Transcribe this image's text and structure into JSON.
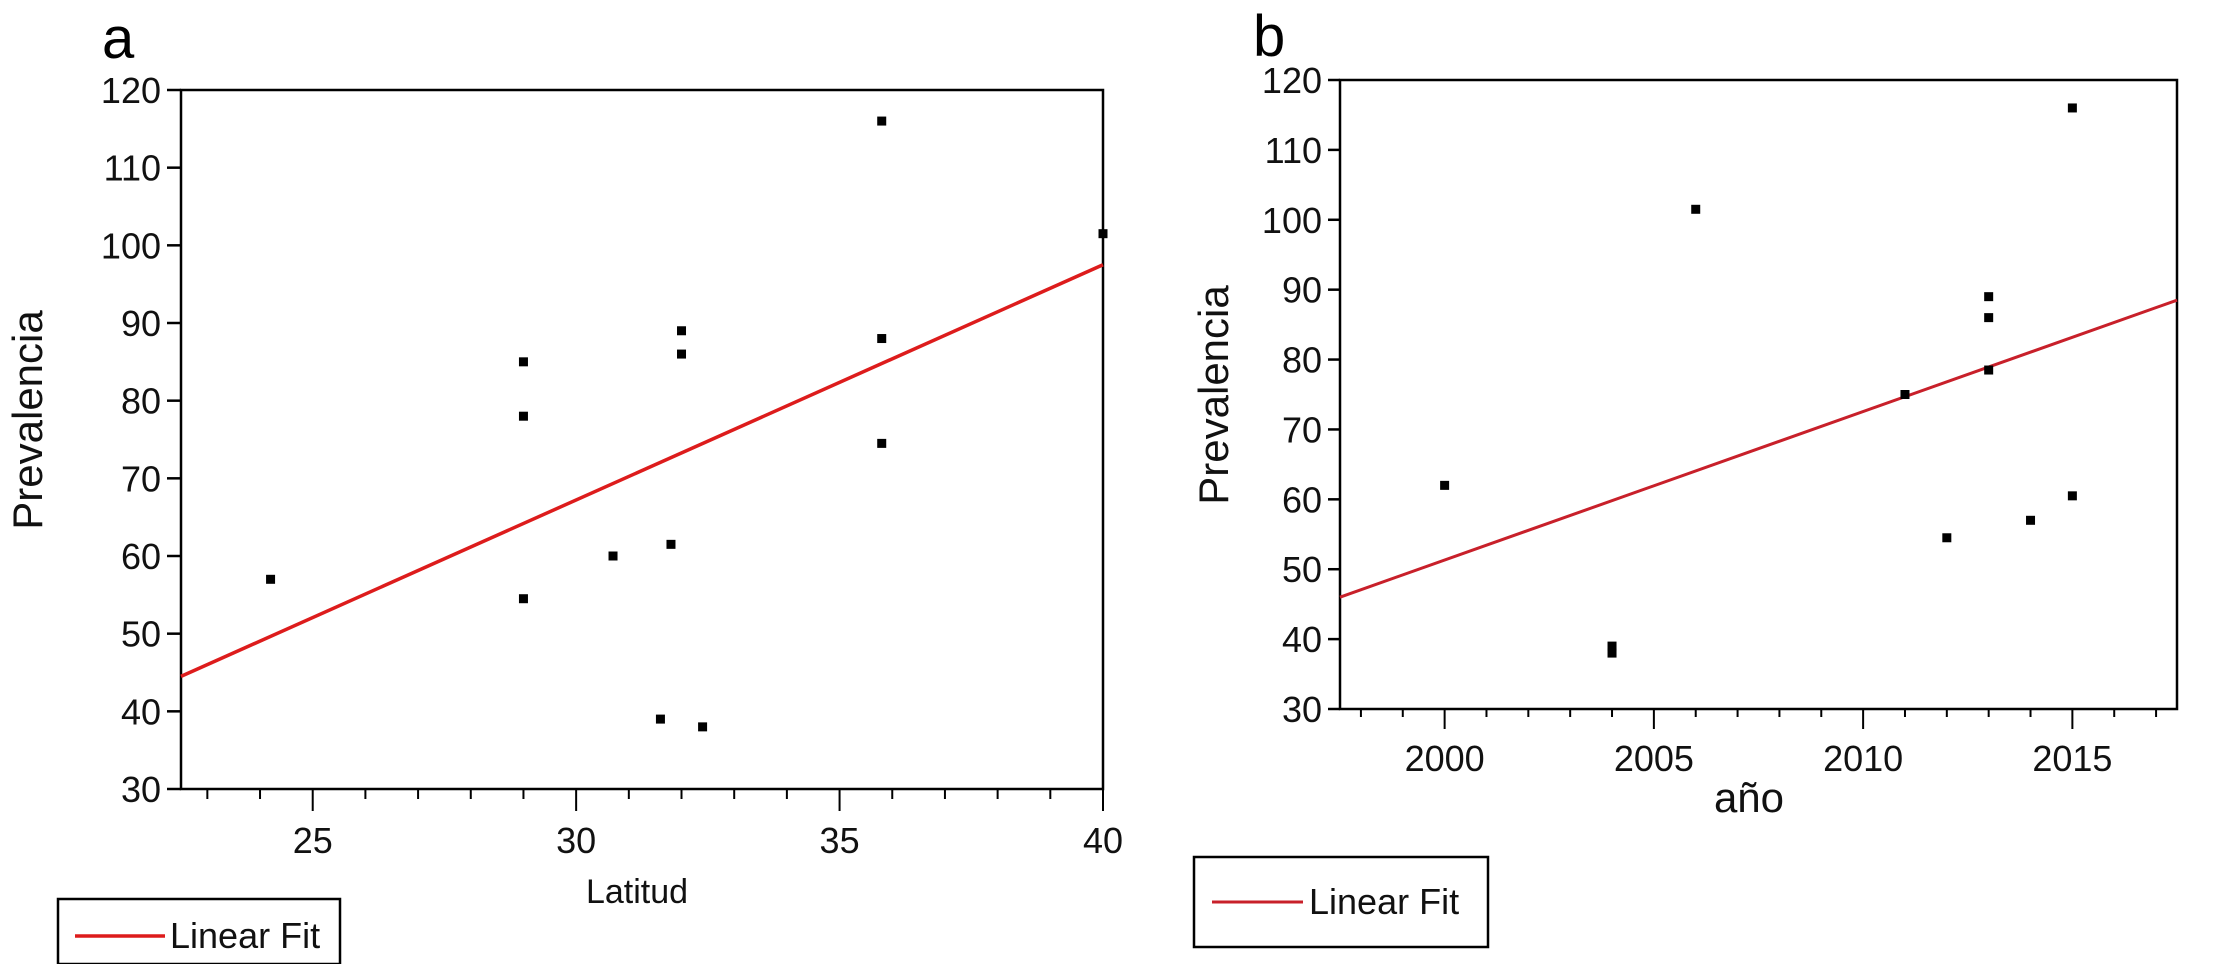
{
  "chart_data": [
    {
      "panel": "a",
      "type": "scatter",
      "xlabel": "Latitud",
      "ylabel": "Prevalencia",
      "xlim": [
        22.5,
        40
      ],
      "ylim": [
        30,
        120
      ],
      "xticks": [
        25,
        30,
        35,
        40
      ],
      "yticks": [
        30,
        40,
        50,
        60,
        70,
        80,
        90,
        100,
        110,
        120
      ],
      "points": [
        {
          "x": 24.2,
          "y": 57
        },
        {
          "x": 29.0,
          "y": 85
        },
        {
          "x": 29.0,
          "y": 78
        },
        {
          "x": 29.0,
          "y": 54.5
        },
        {
          "x": 30.7,
          "y": 60
        },
        {
          "x": 31.6,
          "y": 39
        },
        {
          "x": 31.8,
          "y": 61.5
        },
        {
          "x": 32.0,
          "y": 89
        },
        {
          "x": 32.0,
          "y": 86
        },
        {
          "x": 32.4,
          "y": 38
        },
        {
          "x": 35.8,
          "y": 116
        },
        {
          "x": 35.8,
          "y": 88
        },
        {
          "x": 35.8,
          "y": 74.5
        },
        {
          "x": 40.0,
          "y": 101.5
        }
      ],
      "fit": {
        "x": [
          22.5,
          40
        ],
        "y": [
          44.5,
          97.5
        ]
      },
      "legend": [
        "Linear Fit"
      ],
      "fit_color": "#dd1c1c"
    },
    {
      "panel": "b",
      "type": "scatter",
      "xlabel": "año",
      "ylabel": "Prevalencia",
      "xlim": [
        1997.5,
        2017.5
      ],
      "ylim": [
        30,
        120
      ],
      "xticks": [
        2000,
        2005,
        2010,
        2015
      ],
      "yticks": [
        30,
        40,
        50,
        60,
        70,
        80,
        90,
        100,
        110,
        120
      ],
      "points": [
        {
          "x": 2000,
          "y": 62
        },
        {
          "x": 2004,
          "y": 39
        },
        {
          "x": 2004,
          "y": 38
        },
        {
          "x": 2006,
          "y": 101.5
        },
        {
          "x": 2011,
          "y": 75
        },
        {
          "x": 2012,
          "y": 54.5
        },
        {
          "x": 2013,
          "y": 89
        },
        {
          "x": 2013,
          "y": 86
        },
        {
          "x": 2013,
          "y": 78.5
        },
        {
          "x": 2014,
          "y": 57
        },
        {
          "x": 2015,
          "y": 116
        },
        {
          "x": 2015,
          "y": 60.5
        }
      ],
      "fit": {
        "x": [
          1997.5,
          2017.5
        ],
        "y": [
          46,
          88.5
        ]
      },
      "legend": [
        "Linear Fit"
      ],
      "fit_color": "#c8202a"
    }
  ]
}
